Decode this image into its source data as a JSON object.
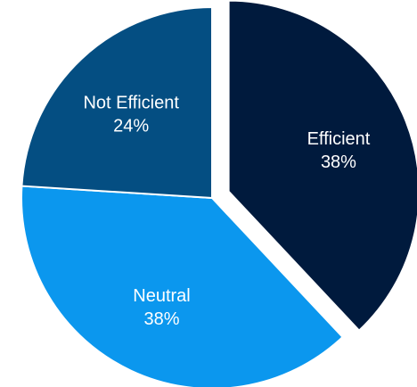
{
  "chart_data": {
    "type": "pie",
    "title": "",
    "legend": "none",
    "exploded_slice": "Efficient",
    "slices": [
      {
        "label": "Efficient",
        "value": 38,
        "value_label": "38%",
        "color": "#001a3d"
      },
      {
        "label": "Neutral",
        "value": 38,
        "value_label": "38%",
        "color": "#0b97ee"
      },
      {
        "label": "Not Efficient",
        "value": 24,
        "value_label": "24%",
        "color": "#044e82"
      }
    ]
  }
}
